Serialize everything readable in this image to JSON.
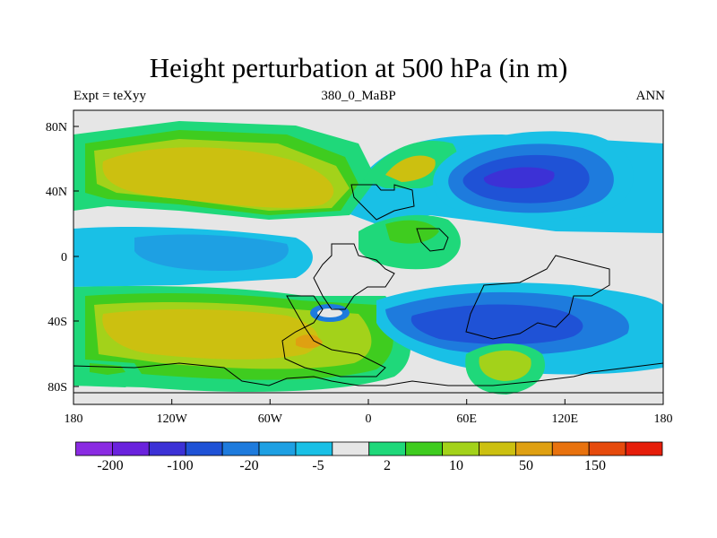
{
  "title": "Height perturbation at 500 hPa (in m)",
  "subtitle_left": "Expt = teXyy",
  "subtitle_center": "380_0_MaBP",
  "subtitle_right": "ANN",
  "x_ticks": [
    "180",
    "120W",
    "60W",
    "0",
    "60E",
    "120E",
    "180"
  ],
  "y_ticks": [
    "80N",
    "40N",
    "0",
    "40S",
    "80S"
  ],
  "colorbar": {
    "colors": [
      "#8a2be2",
      "#6a22dd",
      "#3c31d6",
      "#1f52d6",
      "#1e7bdd",
      "#1ea0e3",
      "#19c0e6",
      "#e6e6e6",
      "#1fd87a",
      "#3fcc1f",
      "#a3d21a",
      "#ccc010",
      "#dfa012",
      "#e8720e",
      "#e64a0c",
      "#e61e0a"
    ],
    "labels": [
      "-200",
      "-100",
      "-20",
      "-5",
      "2",
      "10",
      "50",
      "150"
    ]
  },
  "map_field_colors": {
    "background": "#e6e6e6",
    "green": "#1fd87a",
    "lightgreen": "#3fcc1f",
    "yellowgreen": "#a3d21a",
    "olive": "#ccc010",
    "orange": "#dfa012",
    "cyan": "#19c0e6",
    "lightblue": "#1ea0e3",
    "blue": "#1e7bdd",
    "darkblue": "#1f52d6",
    "indigo": "#3c31d6"
  }
}
